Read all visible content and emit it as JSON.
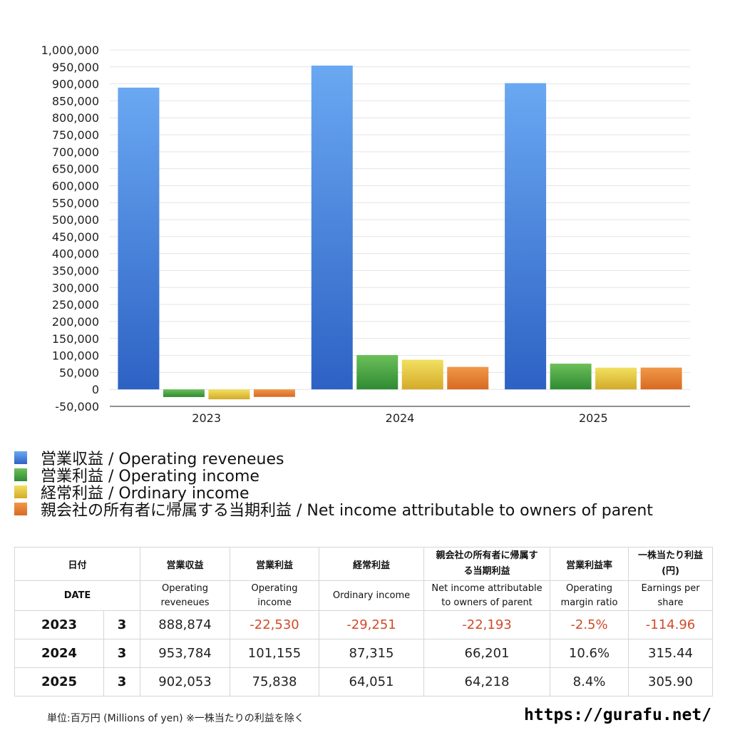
{
  "chart_data": {
    "type": "bar",
    "categories": [
      "2023",
      "2024",
      "2025"
    ],
    "series": [
      {
        "name": "営業収益 / Operating reveneues",
        "values": [
          888874,
          953784,
          902053
        ],
        "color": "#3b7be0"
      },
      {
        "name": "営業利益 / Operating income",
        "values": [
          -22530,
          101155,
          75838
        ],
        "color": "#3f9a3f"
      },
      {
        "name": "経常利益 / Ordinary income",
        "values": [
          -29251,
          87315,
          64051
        ],
        "color": "#e2c53a"
      },
      {
        "name": "親会社の所有者に帰属する当期利益 / Net income attributable to owners of parent",
        "values": [
          -22193,
          66201,
          64218
        ],
        "color": "#e07a30"
      }
    ],
    "y_ticks": [
      "1,000,000",
      "950,000",
      "900,000",
      "850,000",
      "800,000",
      "750,000",
      "700,000",
      "650,000",
      "600,000",
      "550,000",
      "500,000",
      "450,000",
      "400,000",
      "350,000",
      "300,000",
      "250,000",
      "200,000",
      "150,000",
      "100,000",
      "50,000",
      "0",
      "-50,000"
    ],
    "ylim": [
      -50000,
      1000000
    ],
    "grid": true,
    "legend_position": "bottom-left"
  },
  "table": {
    "header_jp": [
      "日付",
      "",
      "営業収益",
      "営業利益",
      "経常利益",
      "親会社の所有者に帰属する当期利益",
      "営業利益率",
      "一株当たり利益(円)"
    ],
    "header_en": [
      "DATE",
      "",
      "Operating reveneues",
      "Operating income",
      "Ordinary income",
      "Net income attributable to owners of parent",
      "Operating margin ratio",
      "Earnings per share"
    ],
    "rows": [
      {
        "year": "2023",
        "month": "3",
        "revenue": "888,874",
        "op_income": "-22,530",
        "ord_income": "-29,251",
        "net_income": "-22,193",
        "margin": "-2.5%",
        "eps": "-114.96"
      },
      {
        "year": "2024",
        "month": "3",
        "revenue": "953,784",
        "op_income": "101,155",
        "ord_income": "87,315",
        "net_income": "66,201",
        "margin": "10.6%",
        "eps": "315.44"
      },
      {
        "year": "2025",
        "month": "3",
        "revenue": "902,053",
        "op_income": "75,838",
        "ord_income": "64,051",
        "net_income": "64,218",
        "margin": "8.4%",
        "eps": "305.90"
      }
    ]
  },
  "footer": {
    "note": "単位:百万円 (Millions of yen) ※一株当たりの利益を除く",
    "url": "https://gurafu.net/"
  }
}
